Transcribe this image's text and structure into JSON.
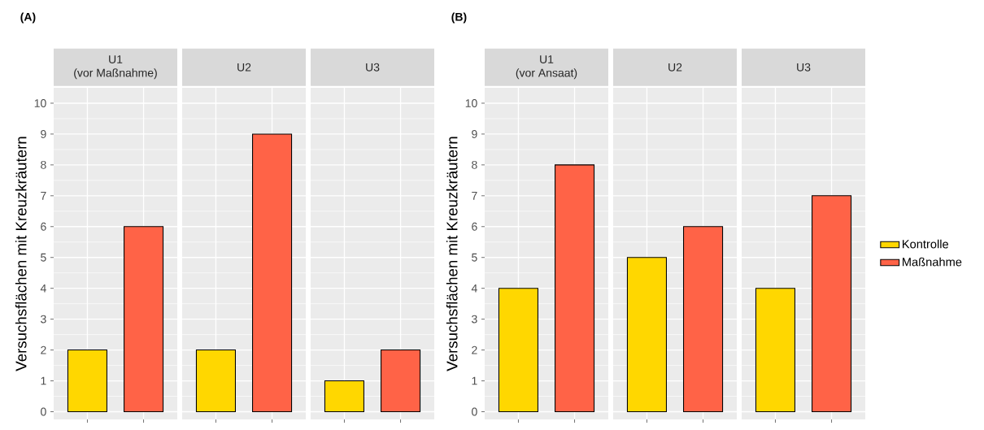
{
  "chart_data": [
    {
      "type": "bar",
      "ylabel": "Versuchsflächen mit Kreuzkräutern",
      "annotations": [
        "(A)",
        "(vor Maßnahme)"
      ],
      "categories": [
        "U1",
        "U2",
        "U3"
      ],
      "series": [
        {
          "color": "#FFD700",
          "values": [
            2,
            2,
            1
          ]
        },
        {
          "color": "#FF6347",
          "values": [
            6,
            9,
            2
          ]
        }
      ],
      "ylim": [
        -0.25,
        10.5
      ],
      "yticks": [
        0,
        1,
        2,
        3,
        4,
        5,
        6,
        7,
        8,
        9,
        10
      ],
      "grid": true
    },
    {
      "type": "bar",
      "ylabel": "Versuchsflächen mit Kreuzkräutern",
      "annotations": [
        "(B)",
        "(vor Ansaat)"
      ],
      "categories": [
        "U1",
        "U2",
        "U3"
      ],
      "series": [
        {
          "name": "Kontrolle",
          "color": "#FFD700",
          "values": [
            4,
            5,
            4
          ]
        },
        {
          "name": "Maßnahme",
          "color": "#FF6347",
          "values": [
            8,
            6,
            7
          ]
        }
      ],
      "ylim": [
        -0.25,
        10.5
      ],
      "yticks": [
        0,
        1,
        2,
        3,
        4,
        5,
        6,
        7,
        8,
        9,
        10
      ],
      "grid": true,
      "legend": "right"
    }
  ]
}
